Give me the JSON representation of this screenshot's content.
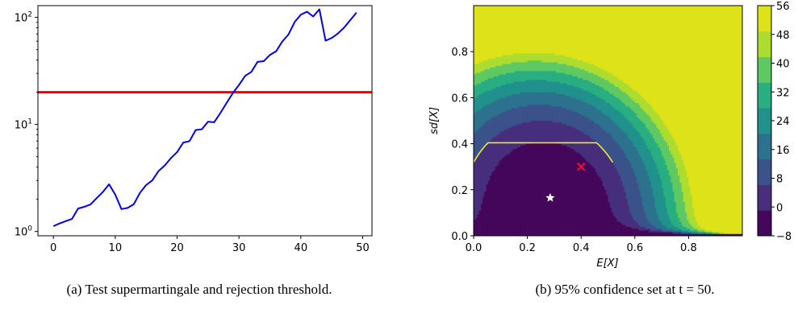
{
  "captions": {
    "a": "(a) Test supermartingale and rejection threshold.",
    "b": "(b) 95% confidence set at t = 50."
  },
  "colors": {
    "wealth_line": "#0000ee",
    "threshold_line": "#ee0000",
    "confidence_contour": "#e6ee33",
    "true_marker": "#dd1133",
    "estimate_marker": "#ffffff"
  },
  "chart_data": [
    {
      "type": "line",
      "title": "",
      "xlabel": "",
      "ylabel": "",
      "xlim": [
        -2.5,
        51.5
      ],
      "ylim_log10": [
        -0.04,
        2.11
      ],
      "yscale": "log",
      "xticks": [
        0,
        10,
        20,
        30,
        40,
        50
      ],
      "yticks": [
        {
          "value": 1,
          "label": "10^0"
        },
        {
          "value": 10,
          "label": "10^1"
        },
        {
          "value": 100,
          "label": "10^2"
        }
      ],
      "grid": false,
      "series": [
        {
          "x": [
            0,
            1,
            2,
            3,
            4,
            5,
            6,
            7,
            8,
            9,
            10,
            11,
            12,
            13,
            14,
            15,
            16,
            17,
            18,
            19,
            20,
            21,
            22,
            23,
            24,
            25,
            26,
            27,
            28,
            29,
            30,
            31,
            32,
            33,
            34,
            35,
            36,
            37,
            38,
            39,
            40,
            41,
            42,
            43,
            44,
            45,
            46,
            47,
            48,
            49
          ],
          "values": [
            1.12,
            1.19,
            1.25,
            1.31,
            1.64,
            1.7,
            1.79,
            2.05,
            2.34,
            2.76,
            2.21,
            1.62,
            1.66,
            1.8,
            2.3,
            2.72,
            3.01,
            3.67,
            4.14,
            4.85,
            5.51,
            6.78,
            6.98,
            8.87,
            9.02,
            10.6,
            10.5,
            12.8,
            15.9,
            19.6,
            23.4,
            28.4,
            31.0,
            38.4,
            39.0,
            44.6,
            48.2,
            59.5,
            69.2,
            90.6,
            106,
            113,
            102,
            119,
            60.6,
            64.3,
            70.8,
            80.4,
            94.6,
            111
          ]
        }
      ],
      "hlines": [
        {
          "y": 20
        }
      ]
    },
    {
      "type": "contour",
      "title": "",
      "xlabel": "E[X]",
      "ylabel": "sd[X]",
      "xlim": [
        0,
        1
      ],
      "ylim": [
        0,
        1
      ],
      "xticks": [
        0.0,
        0.2,
        0.4,
        0.6,
        0.8
      ],
      "yticks": [
        0.0,
        0.2,
        0.4,
        0.6,
        0.8
      ],
      "levels": [
        -8,
        0,
        8,
        16,
        24,
        32,
        40,
        48,
        56
      ],
      "level_colors": [
        "#45075b",
        "#472f7d",
        "#3b528b",
        "#2c728e",
        "#21918c",
        "#28ae80",
        "#5ec962",
        "#addc30",
        "#dde318"
      ],
      "colorbar_ticks": [
        -8,
        0,
        8,
        16,
        24,
        32,
        40,
        48,
        56
      ],
      "confidence_level": 8,
      "markers": [
        {
          "name": "estimate",
          "symbol": "star",
          "x": 0.285,
          "y": 0.165
        },
        {
          "name": "truth",
          "symbol": "x",
          "x": 0.4,
          "y": 0.3
        }
      ]
    }
  ]
}
